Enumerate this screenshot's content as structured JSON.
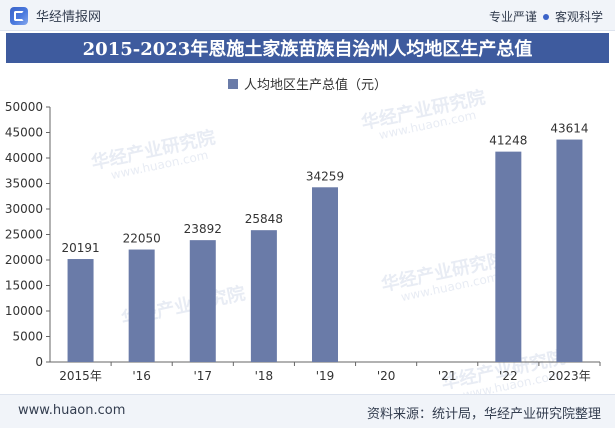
{
  "header": {
    "brand_name": "华经情报网",
    "tag_left": "专业严谨",
    "tag_right": "客观科学",
    "brand_color": "#3b63c8"
  },
  "title": "2015-2023年恩施土家族苗族自治州人均地区生产总值",
  "footer": {
    "url": "www.huaon.com",
    "source": "资料来源：统计局，华经产业研究院整理"
  },
  "watermark": {
    "text": "华经产业研究院",
    "sub": "www.huaon.com"
  },
  "chart_data": {
    "type": "bar",
    "title": "2015-2023年恩施土家族苗族自治州人均地区生产总值",
    "series": [
      {
        "name": "人均地区生产总值（元）",
        "color": "#6a7ba8",
        "values": [
          20191,
          22050,
          23892,
          25848,
          34259,
          null,
          null,
          41248,
          43614
        ]
      }
    ],
    "categories": [
      "2015年",
      "'16",
      "'17",
      "'18",
      "'19",
      "'20",
      "'21",
      "'22",
      "2023年"
    ],
    "data_labels": [
      "20191",
      "22050",
      "23892",
      "25848",
      "34259",
      "",
      "",
      "41248",
      "43614"
    ],
    "ylim": [
      0,
      50000
    ],
    "yticks": [
      0,
      5000,
      10000,
      15000,
      20000,
      25000,
      30000,
      35000,
      40000,
      45000,
      50000
    ],
    "grid": false,
    "legend_position": "top-center"
  }
}
